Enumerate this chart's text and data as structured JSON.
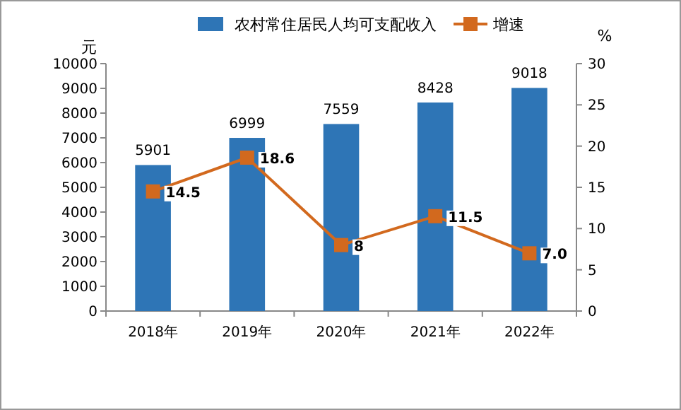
{
  "chart_data": {
    "type": "bar",
    "ylabel": "元",
    "y2label": "%",
    "categories": [
      "2018年",
      "2019年",
      "2020年",
      "2021年",
      "2022年"
    ],
    "series": [
      {
        "name": "农村常住居民人均可支配收入",
        "color": "#2e75b6",
        "values": [
          5901,
          6999,
          7559,
          8428,
          9018
        ],
        "value_labels": [
          "5901",
          "6999",
          "7559",
          "8428",
          "9018"
        ]
      },
      {
        "name": "增速",
        "type": "line",
        "axis": "y2",
        "color": "#d2691e",
        "marker": "square",
        "values": [
          14.5,
          18.6,
          8,
          11.5,
          7.0
        ],
        "value_labels": [
          "14.5",
          "18.6",
          "8",
          "11.5",
          "7.0"
        ]
      }
    ],
    "ylim": [
      0,
      10000
    ],
    "yticks": [
      0,
      1000,
      2000,
      3000,
      4000,
      5000,
      6000,
      7000,
      8000,
      9000,
      10000
    ],
    "y2lim": [
      0,
      30
    ],
    "y2ticks": [
      0,
      5,
      10,
      15,
      20,
      25,
      30
    ],
    "grid": false,
    "legend": "top"
  }
}
